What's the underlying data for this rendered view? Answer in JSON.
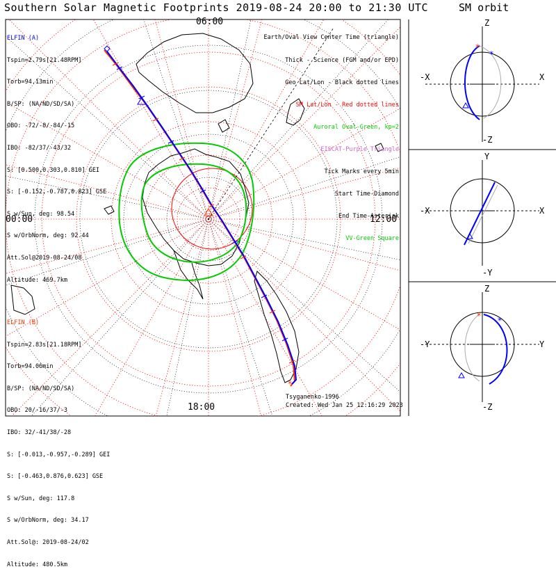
{
  "header": {
    "title": "Southern Solar Magnetic Footprints 2019-08-24 20:00 to 21:30 UTC",
    "sm_title": "SM orbit"
  },
  "elfin_a": {
    "name": "ELFIN (A)",
    "lines": [
      "Tspin=2.79s[21.48RPM]",
      "Torb=94.13min",
      "B/SP: (NA/ND/SD/SA)",
      "OBO: -72/-8/-84/-15",
      "IBO: -82/37/-43/32",
      "S: [0.500,0.303,0.810] GEI",
      "S: [-0.152,-0.787,0.823] GSE",
      "S w/Sun, deg: 98.54",
      "S w/OrbNorm, deg: 92.44",
      "Att.Sol@2019-08-24/08",
      "Altitude: 469.7km"
    ]
  },
  "elfin_b": {
    "name": "ELFIN (B)",
    "lines": [
      "Tspin=2.83s[21.18RPM]",
      "Torb=94.06min",
      "B/SP: (NA/ND/SD/SA)",
      "OBO: 20/-16/37/-3",
      "IBO: 32/-41/38/-28",
      "S: [-0.013,-0.957,-0.289] GEI",
      "S: [-0.463,0.876,0.623] GSE",
      "S w/Sun, deg: 117.8",
      "S w/OrbNorm, deg: 34.17",
      "Att.Sol@: 2019-08-24/02",
      "Altitude: 480.5km"
    ]
  },
  "legend": {
    "items": [
      {
        "text": "Earth/Oval View Center Time (triangle)",
        "color": "#000000"
      },
      {
        "text": "Thick - Science (FGM and/or EPD)",
        "color": "#000000"
      },
      {
        "text": "Geo Lat/Lon - Black dotted lines",
        "color": "#000000"
      },
      {
        "text": "SM Lat/Lon - Red dotted lines",
        "color": "#ff0000"
      },
      {
        "text": "Auroral Oval-Green, kp=2",
        "color": "#00cc00"
      },
      {
        "text": "EISCAT-Purple Triangle",
        "color": "#cc66cc"
      },
      {
        "text": "Tick Marks every 5min",
        "color": "#000000"
      },
      {
        "text": "Start Time-Diamond",
        "color": "#000000"
      },
      {
        "text": "End Time-Asterisk",
        "color": "#000000"
      },
      {
        "text": "VV-Green Square",
        "color": "#00cc00"
      }
    ]
  },
  "hours": {
    "top": "06:00",
    "left": "00:00",
    "right": "12:00",
    "bottom": "18:00"
  },
  "credits": {
    "model": "Tsyganenko-1996",
    "created": "Created: Wed Jan 25 12:16:29 2023"
  },
  "panels": [
    {
      "top": "Z",
      "bottom": "-Z",
      "left": "-X",
      "right": "X"
    },
    {
      "top": "Y",
      "bottom": "-Y",
      "left": "-X",
      "right": "X"
    },
    {
      "top": "Z",
      "bottom": "-Z",
      "left": "-Y",
      "right": "Y"
    }
  ],
  "colors": {
    "elfin_a": "#0000ff",
    "elfin_b": "#ff3300",
    "geo_grid": "#000000",
    "sm_grid": "#ff0000",
    "auroral_oval": "#00cc00",
    "eiscat": "#cc66cc"
  },
  "chart_data": {
    "type": "polar-map",
    "projection": "southern hemisphere, magnetic local time around rim",
    "rim_labels": {
      "06:00": "top",
      "12:00": "right",
      "18:00": "bottom",
      "00:00": "left"
    },
    "kp": 2,
    "series": [
      {
        "name": "ELFIN (A)",
        "color": "#0000ff"
      },
      {
        "name": "ELFIN (B)",
        "color": "#ff3300"
      }
    ]
  }
}
